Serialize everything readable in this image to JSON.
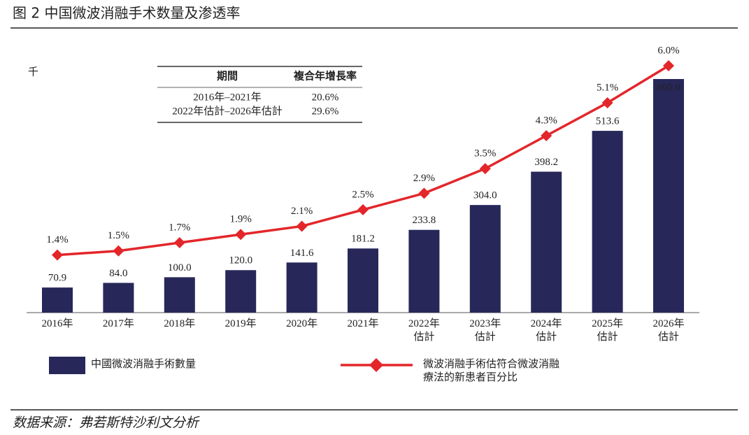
{
  "title": "图 2 中国微波消融手术数量及渗透率",
  "source": "数据来源：弗若斯特沙利文分析",
  "chart_data": {
    "type": "bar",
    "unit_label": "千",
    "categories": [
      "2016年",
      "2017年",
      "2018年",
      "2019年",
      "2020年",
      "2021年",
      "2022年\n估計",
      "2023年\n估計",
      "2024年\n估計",
      "2025年\n估計",
      "2026年\n估計"
    ],
    "series": [
      {
        "name": "中國微波消融手術數量",
        "type": "bar",
        "color": "#27275a",
        "values": [
          70.9,
          84.0,
          100.0,
          120.0,
          141.6,
          181.2,
          233.8,
          304.0,
          398.2,
          513.6,
          660.0
        ],
        "value_labels": [
          "70.9",
          "84.0",
          "100.0",
          "120.0",
          "141.6",
          "181.2",
          "233.8",
          "304.0",
          "398.2",
          "513.6",
          "660.0"
        ]
      },
      {
        "name": "微波消融手術估符合微波消融\n療法的新患者百分比",
        "type": "line",
        "axis": "y2",
        "color": "#e3262a",
        "values": [
          1.4,
          1.5,
          1.7,
          1.9,
          2.1,
          2.5,
          2.9,
          3.5,
          4.3,
          5.1,
          6.0
        ],
        "value_labels": [
          "1.4%",
          "1.5%",
          "1.7%",
          "1.9%",
          "2.1%",
          "2.5%",
          "2.9%",
          "3.5%",
          "4.3%",
          "5.1%",
          "6.0%"
        ]
      }
    ],
    "table": {
      "header": [
        "期間",
        "複合年增長率"
      ],
      "rows": [
        [
          "2016年–2021年",
          "20.6%"
        ],
        [
          "2022年估計–2026年估計",
          "29.6%"
        ]
      ]
    }
  }
}
